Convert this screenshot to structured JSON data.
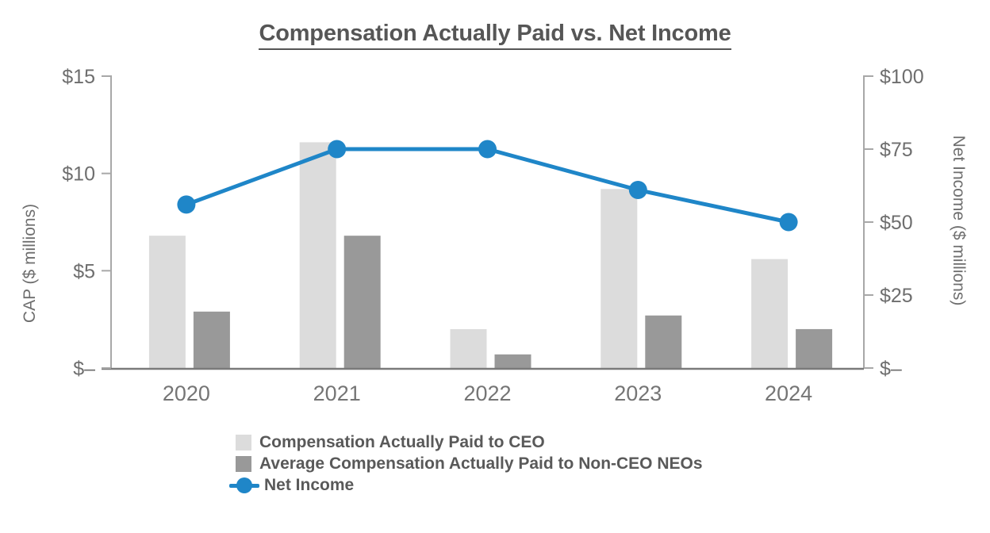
{
  "title": "Compensation Actually Paid vs. Net Income",
  "colors": {
    "ceo_bar": "#dcdcdc",
    "neo_bar": "#999999",
    "net_income_line": "#1f86c8",
    "axis_line": "#a8a8a8",
    "baseline": "#7a7a7a",
    "tick_text": "#6e6e6e",
    "year_text": "#757575",
    "axis_title_text": "#6e6e6e",
    "title_text": "#565656",
    "legend_text": "#595959"
  },
  "chart_data": {
    "type": "combo-bar-line",
    "title": "Compensation Actually Paid vs. Net Income",
    "categories": [
      "2020",
      "2021",
      "2022",
      "2023",
      "2024"
    ],
    "series": [
      {
        "name": "Compensation Actually Paid to CEO",
        "type": "bar",
        "axis": "left",
        "color": "#dcdcdc",
        "values": [
          6.8,
          11.6,
          2.0,
          9.2,
          5.6
        ]
      },
      {
        "name": "Average Compensation Actually Paid to Non-CEO NEOs",
        "type": "bar",
        "axis": "left",
        "color": "#999999",
        "values": [
          2.9,
          6.8,
          0.7,
          2.7,
          2.0
        ]
      },
      {
        "name": "Net Income",
        "type": "line",
        "axis": "right",
        "color": "#1f86c8",
        "values": [
          56,
          75,
          75,
          61,
          50
        ]
      }
    ],
    "left_axis": {
      "label": "CAP ($ millions)",
      "range": [
        0,
        15
      ],
      "ticks": [
        {
          "value": 15,
          "label": "$15"
        },
        {
          "value": 10,
          "label": "$10"
        },
        {
          "value": 5,
          "label": "$5"
        },
        {
          "value": 0,
          "label": "$–"
        }
      ]
    },
    "right_axis": {
      "label": "Net Income ($ millions)",
      "range": [
        0,
        100
      ],
      "ticks": [
        {
          "value": 100,
          "label": "$100"
        },
        {
          "value": 75,
          "label": "$75"
        },
        {
          "value": 50,
          "label": "$50"
        },
        {
          "value": 25,
          "label": "$25"
        },
        {
          "value": 0,
          "label": "$–"
        }
      ]
    },
    "grid": false,
    "legend_position": "bottom"
  }
}
